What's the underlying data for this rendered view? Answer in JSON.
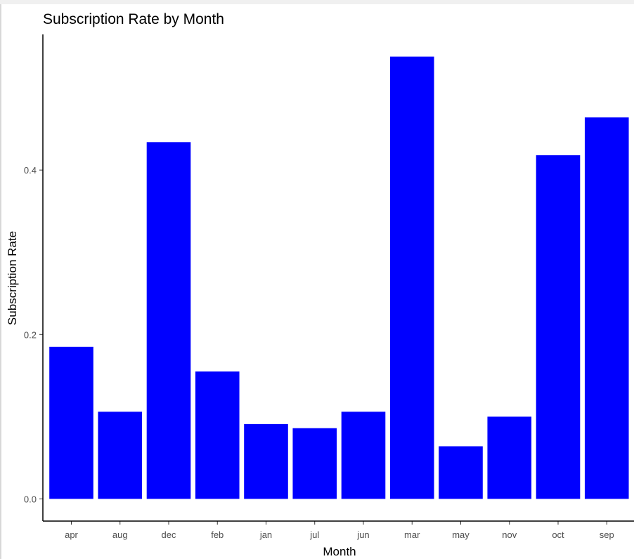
{
  "chart_data": {
    "type": "bar",
    "title": "Subscription Rate by Month",
    "xlabel": "Month",
    "ylabel": "Subscription Rate",
    "categories": [
      "apr",
      "aug",
      "dec",
      "feb",
      "jan",
      "jul",
      "jun",
      "mar",
      "may",
      "nov",
      "oct",
      "sep"
    ],
    "values": [
      0.185,
      0.106,
      0.434,
      0.155,
      0.091,
      0.086,
      0.106,
      0.538,
      0.064,
      0.1,
      0.418,
      0.464
    ],
    "yticks": [
      0.0,
      0.2,
      0.4
    ],
    "ytick_labels": [
      "0.0",
      "0.2",
      "0.4"
    ],
    "ylim": [
      -0.027,
      0.565
    ],
    "bar_color": "#0000ff",
    "grid": false,
    "legend": "none"
  }
}
